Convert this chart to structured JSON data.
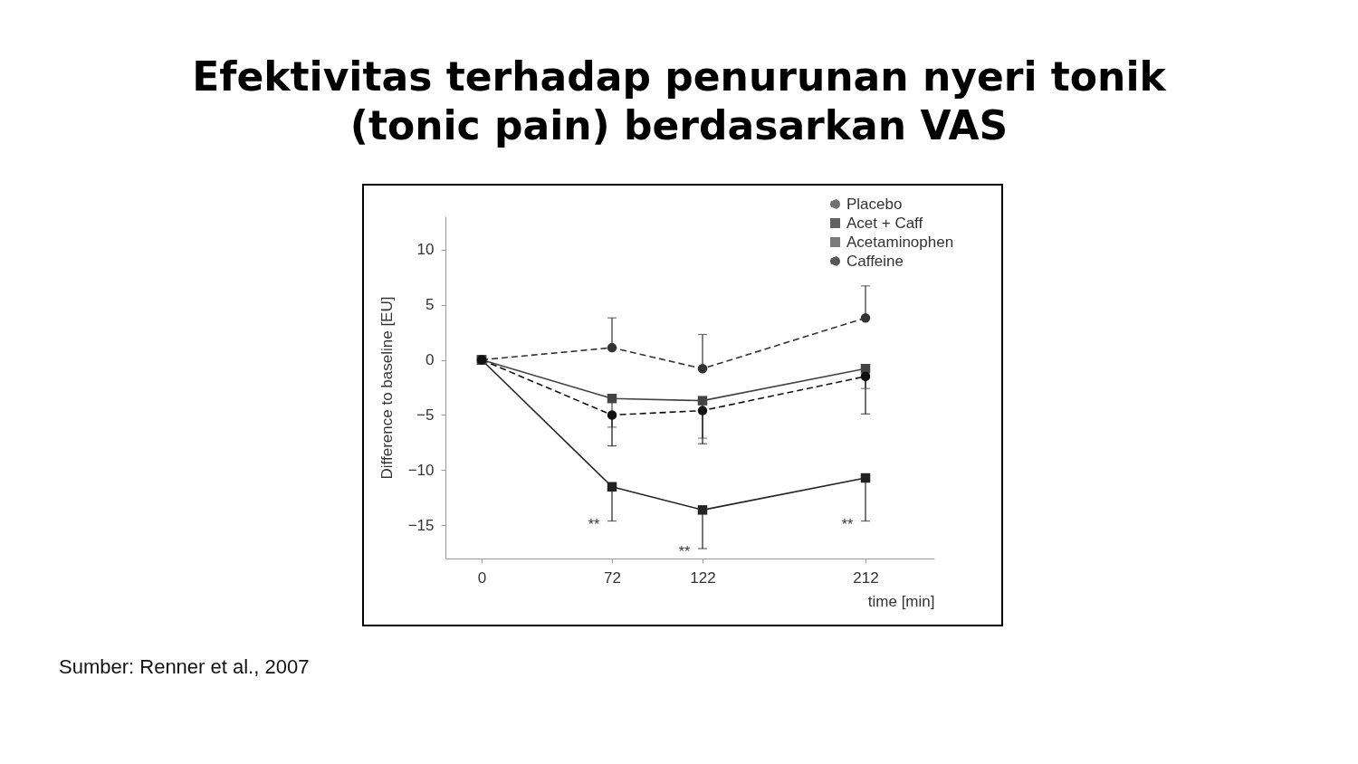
{
  "chart_data": {
    "type": "line",
    "title": "Efektivitas terhadap penurunan nyeri tonik (tonic pain) berdasarkan VAS",
    "xlabel": "time [min]",
    "ylabel": "Difference to baseline [EU]",
    "x": [
      0,
      72,
      122,
      212
    ],
    "series": [
      {
        "name": "Placebo",
        "color": "#333333",
        "marker": "circle",
        "line_style": "dashed",
        "values": [
          0,
          1.1,
          -0.8,
          3.8
        ],
        "errors": [
          null,
          [
            1.1,
            3.8
          ],
          [
            -0.8,
            2.3
          ],
          [
            3.8,
            6.7
          ]
        ]
      },
      {
        "name": "Acet + Caff",
        "color": "#222222",
        "marker": "square",
        "line_style": "solid",
        "values": [
          0,
          -11.5,
          -13.6,
          -10.7
        ],
        "errors": [
          null,
          [
            -14.6,
            -11.5
          ],
          [
            -17.1,
            -13.6
          ],
          [
            -14.6,
            -10.7
          ]
        ]
      },
      {
        "name": "Acetaminophen",
        "color": "#444444",
        "marker": "square",
        "line_style": "solid",
        "values": [
          0,
          -3.5,
          -3.7,
          -0.8
        ],
        "errors": [
          null,
          [
            -6.1,
            -3.5
          ],
          [
            -7.1,
            -3.7
          ],
          [
            -2.6,
            -0.8
          ]
        ]
      },
      {
        "name": "Caffeine",
        "color": "#111111",
        "marker": "circle",
        "line_style": "dashed",
        "values": [
          0,
          -5.0,
          -4.6,
          -1.5
        ],
        "errors": [
          null,
          [
            -7.8,
            -5.0
          ],
          [
            -7.6,
            -4.6
          ],
          [
            -4.9,
            -1.5
          ]
        ]
      }
    ],
    "xlim": [
      -20,
      250
    ],
    "xticks": [
      0,
      72,
      122,
      212
    ],
    "ylim": [
      -18,
      13
    ],
    "yticks": [
      -15,
      -10,
      -5,
      0,
      5,
      10
    ],
    "legend": "top right",
    "annotations": [
      {
        "text": "**",
        "x": 72,
        "y": -14.6
      },
      {
        "text": "**",
        "x": 122,
        "y": -17.1
      },
      {
        "text": "**",
        "x": 212,
        "y": -14.6
      },
      "Sumber: Renner et al., 2007"
    ]
  }
}
